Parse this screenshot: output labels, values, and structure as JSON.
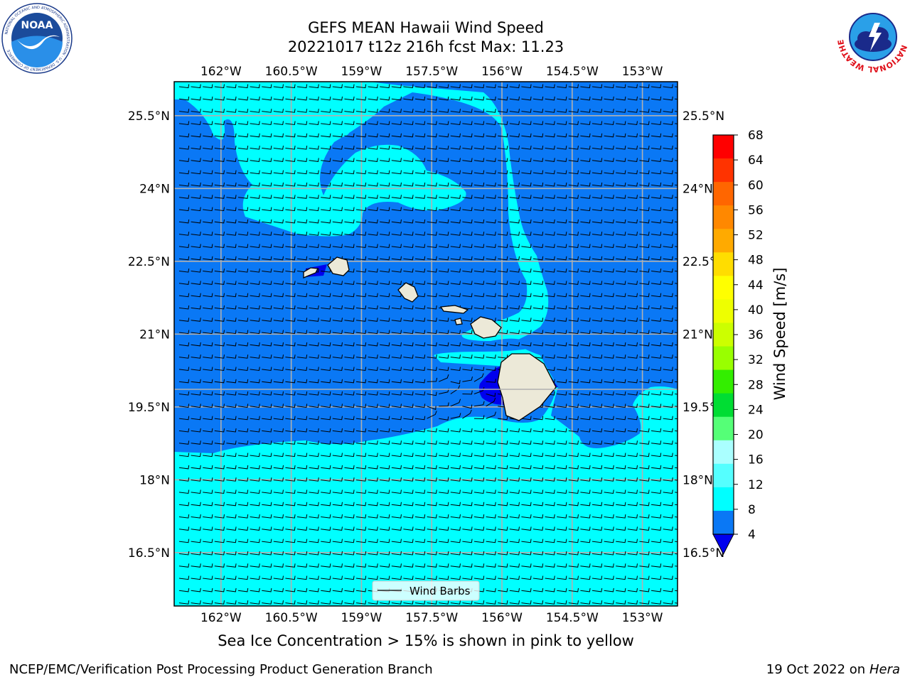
{
  "title": {
    "line1": "GEFS MEAN Hawaii Wind Speed",
    "line2": "20221017 t12z 216h fcst   Max: 11.23"
  },
  "map": {
    "lon_ticks": [
      "162°W",
      "160.5°W",
      "159°W",
      "157.5°W",
      "156°W",
      "154.5°W",
      "153°W"
    ],
    "lat_ticks": [
      "25.5°N",
      "24°N",
      "22.5°N",
      "21°N",
      "19.5°N",
      "18°N",
      "16.5°N"
    ],
    "lon_range": [
      -163,
      -152.25
    ],
    "lat_range": [
      15.4,
      26.2
    ],
    "legend_label": "Wind Barbs",
    "ocean_colors": {
      "level_4_8": "#0a78f5",
      "level_8_12": "#00ffff",
      "land": "#ece9d8"
    }
  },
  "colorbar": {
    "label": "Wind Speed [m/s]",
    "ticks": [
      "68",
      "64",
      "60",
      "56",
      "52",
      "48",
      "44",
      "40",
      "36",
      "32",
      "28",
      "24",
      "20",
      "16",
      "12",
      "8",
      "4"
    ],
    "colors": [
      "#ff0000",
      "#ff3300",
      "#ff6600",
      "#ff8800",
      "#ffaa00",
      "#ffdd00",
      "#ffff00",
      "#eeff00",
      "#ccff00",
      "#99ff00",
      "#33ee00",
      "#00dd33",
      "#55ff77",
      "#aaffff",
      "#55ffff",
      "#00ffff",
      "#0a78f5"
    ],
    "under_color": "#0000ee"
  },
  "subtitle": "Sea Ice Concentration > 15% is shown in pink to yellow",
  "footer": {
    "left": "NCEP/EMC/Verification Post Processing Product Generation Branch",
    "right_date": "19 Oct 2022 on ",
    "right_host": "Hera"
  },
  "logos": {
    "noaa_text": "NOAA",
    "noaa_ring": "NATIONAL OCEANIC AND ATMOSPHERIC ADMINISTRATION · U.S. DEPARTMENT OF COMMERCE",
    "nws_ring": "NATIONAL WEATHER SERVICE"
  }
}
